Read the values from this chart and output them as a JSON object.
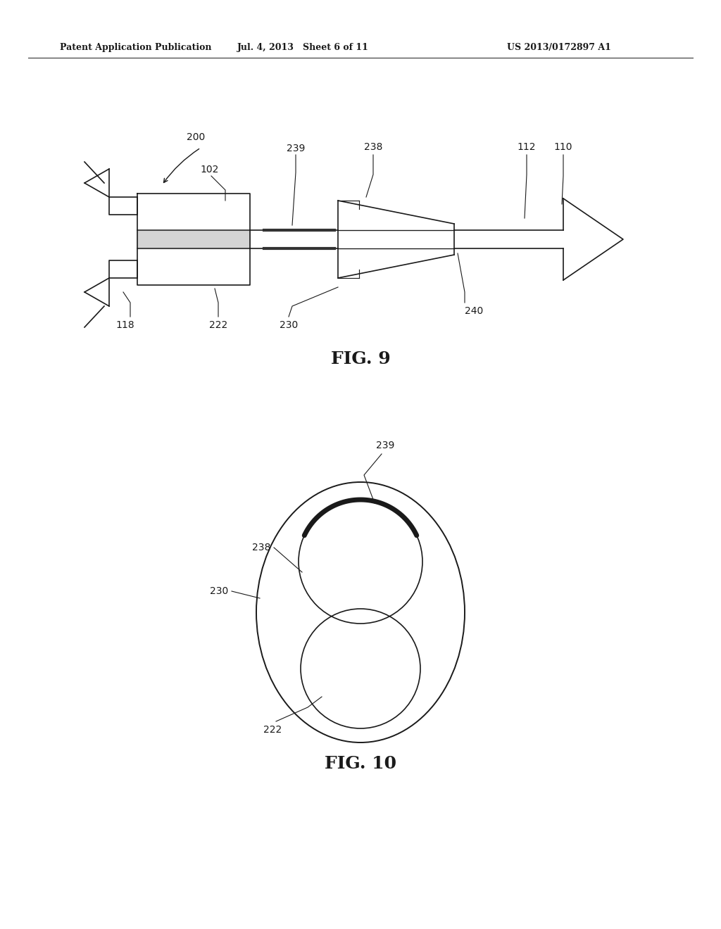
{
  "bg_color": "#ffffff",
  "header_left": "Patent Application Publication",
  "header_mid": "Jul. 4, 2013   Sheet 6 of 11",
  "header_right": "US 2013/0172897 A1",
  "fig9_label": "FIG. 9",
  "fig10_label": "FIG. 10",
  "black": "#1a1a1a",
  "gray": "#888888",
  "line_width": 1.2,
  "thick_lw": 4.0,
  "fs_label": 10,
  "fs_fig": 18,
  "fs_header": 9
}
